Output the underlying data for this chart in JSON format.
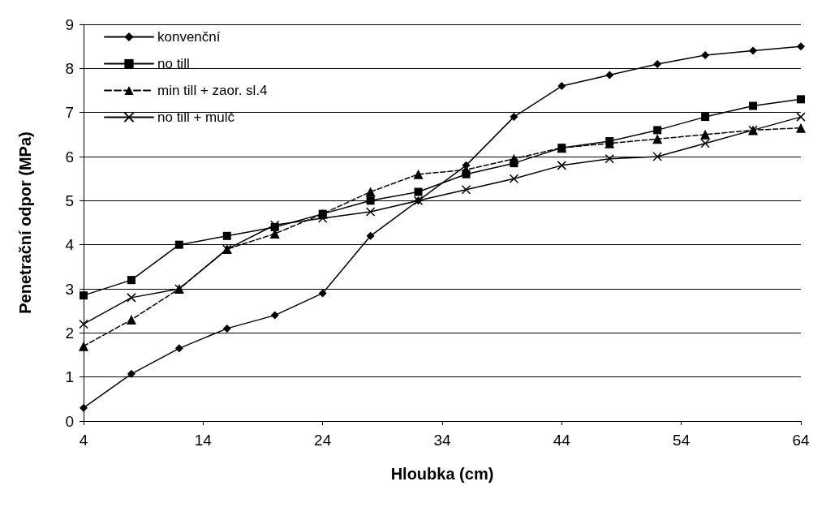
{
  "chart_data": {
    "type": "line",
    "xlabel": "Hloubka (cm)",
    "ylabel": "Penetrační odpor (MPa)",
    "x": [
      4,
      8,
      12,
      16,
      20,
      24,
      28,
      32,
      36,
      40,
      44,
      48,
      52,
      56,
      60,
      64
    ],
    "xlim": [
      4,
      64
    ],
    "xticks": [
      4,
      14,
      24,
      34,
      44,
      54,
      64
    ],
    "ylim": [
      0,
      9
    ],
    "yticks": [
      0,
      1,
      2,
      3,
      4,
      5,
      6,
      7,
      8,
      9
    ],
    "grid": "y",
    "legend": "top left",
    "series": [
      {
        "name": "konvenční",
        "color": "#000000",
        "marker": "diamond",
        "line_style": "solid",
        "values": [
          0.3,
          1.07,
          1.65,
          2.1,
          2.4,
          2.9,
          4.2,
          5.0,
          5.8,
          6.9,
          7.6,
          7.85,
          8.1,
          8.3,
          8.4,
          8.5
        ]
      },
      {
        "name": "no till",
        "color": "#000000",
        "marker": "square",
        "line_style": "solid",
        "values": [
          2.85,
          3.2,
          4.0,
          4.2,
          4.4,
          4.7,
          5.0,
          5.2,
          5.6,
          5.85,
          6.2,
          6.35,
          6.6,
          6.9,
          7.15,
          7.3
        ]
      },
      {
        "name": "min till + zaor. sl.4",
        "color": "#000000",
        "marker": "triangle",
        "line_style": "dashed",
        "values": [
          1.7,
          2.3,
          3.0,
          3.9,
          4.25,
          4.7,
          5.2,
          5.6,
          5.7,
          5.95,
          6.2,
          6.3,
          6.4,
          6.5,
          6.6,
          6.65
        ]
      },
      {
        "name": "no till + mulč",
        "color": "#000000",
        "marker": "cross",
        "line_style": "solid",
        "values": [
          2.2,
          2.8,
          3.0,
          3.9,
          4.45,
          4.6,
          4.75,
          5.0,
          5.25,
          5.5,
          5.8,
          5.95,
          6.0,
          6.3,
          6.6,
          6.9
        ]
      }
    ]
  }
}
